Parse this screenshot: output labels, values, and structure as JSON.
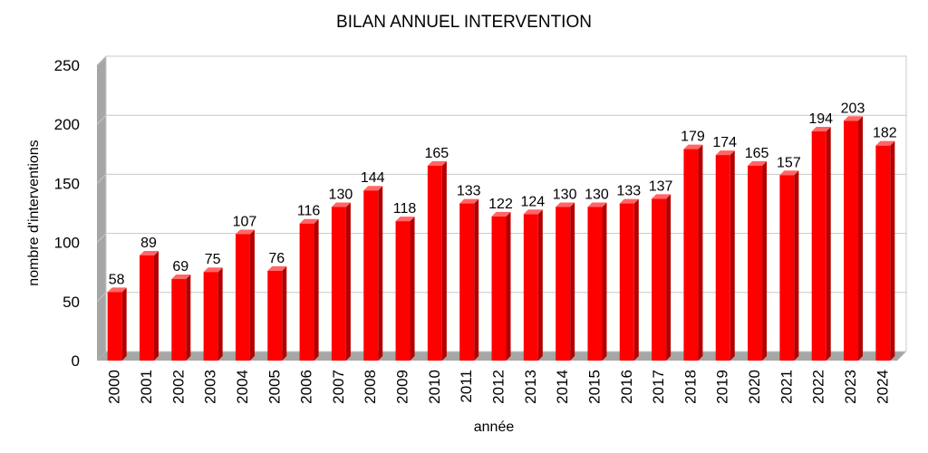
{
  "chart_data": {
    "type": "bar",
    "title": "BILAN ANNUEL INTERVENTION",
    "xlabel": "année",
    "ylabel": "nombre d'interventions",
    "categories": [
      "2000",
      "2001",
      "2002",
      "2003",
      "2004",
      "2005",
      "2006",
      "2007",
      "2008",
      "2009",
      "2010",
      "2011",
      "2012",
      "2013",
      "2014",
      "2015",
      "2016",
      "2017",
      "2018",
      "2019",
      "2020",
      "2021",
      "2022",
      "2023",
      "2024"
    ],
    "values": [
      58,
      89,
      69,
      75,
      107,
      76,
      116,
      130,
      144,
      118,
      165,
      133,
      122,
      124,
      130,
      130,
      133,
      137,
      179,
      174,
      165,
      157,
      194,
      203,
      182
    ],
    "ylim": [
      0,
      250
    ],
    "yticks": [
      0,
      50,
      100,
      150,
      200,
      250
    ],
    "grid": true,
    "legend": "none",
    "colors": {
      "bar": "#ff0000",
      "bar_side": "#b30000",
      "bar_top": "#ff6666",
      "grid": "#c8c8c8",
      "wall_side": "#a0a0a0"
    }
  }
}
